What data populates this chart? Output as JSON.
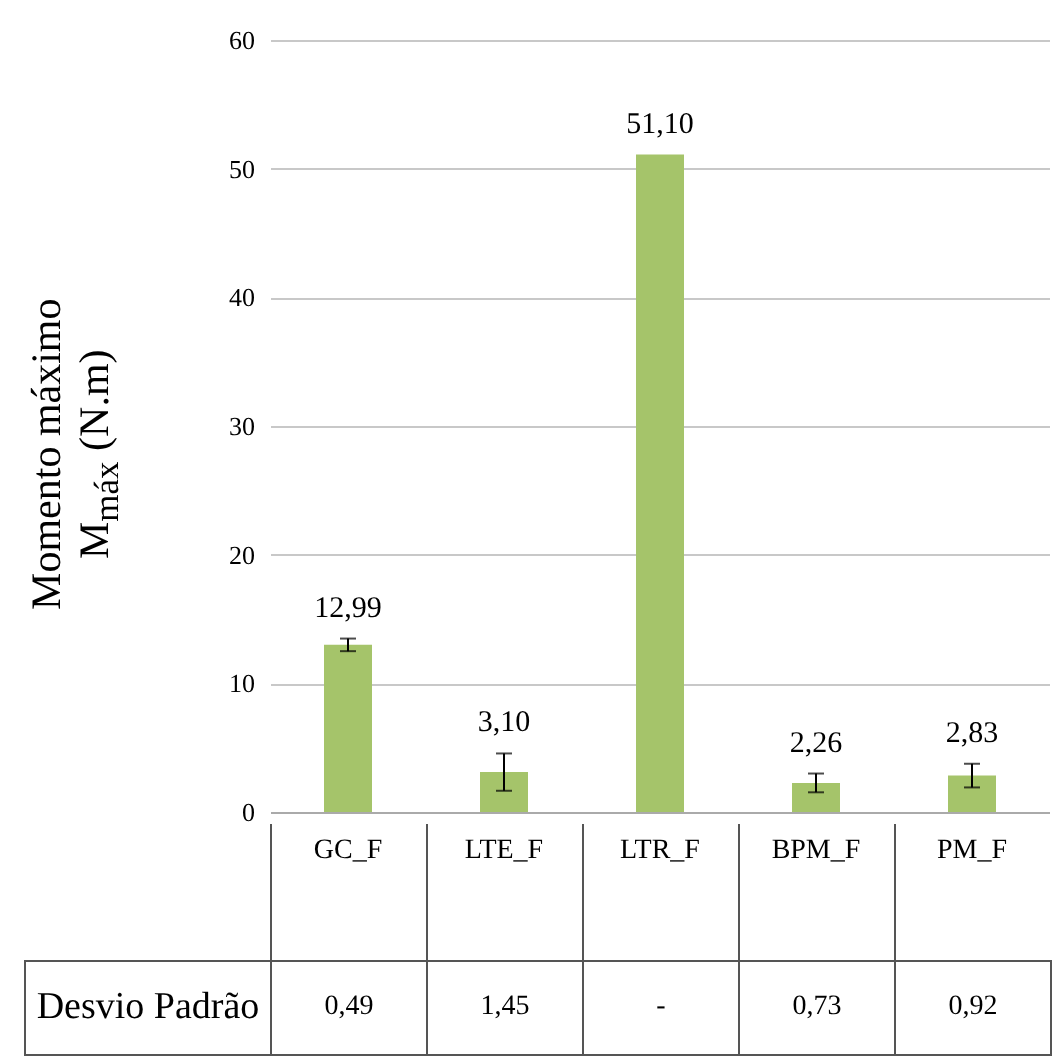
{
  "chart_data": {
    "type": "bar",
    "ylabel": "Momento máximo\nM$_{máx}$ (N.m)",
    "categories": [
      "GC_F",
      "LTE_F",
      "LTR_F",
      "BPM_F",
      "PM_F"
    ],
    "values": [
      12.99,
      3.1,
      51.1,
      2.26,
      2.83
    ],
    "value_labels": [
      "12,99",
      "3,10",
      "51,10",
      "2,26",
      "2,83"
    ],
    "errors": [
      0.49,
      1.45,
      null,
      0.73,
      0.92
    ],
    "color": "#a5c46a",
    "ylim": [
      0,
      60
    ],
    "yticks": [
      0,
      10,
      20,
      30,
      40,
      50,
      60
    ],
    "grid": "y",
    "annotations": [
      "Desvio Padrão",
      "0,49",
      "1,45",
      "-",
      "0,73",
      "0,92"
    ]
  }
}
